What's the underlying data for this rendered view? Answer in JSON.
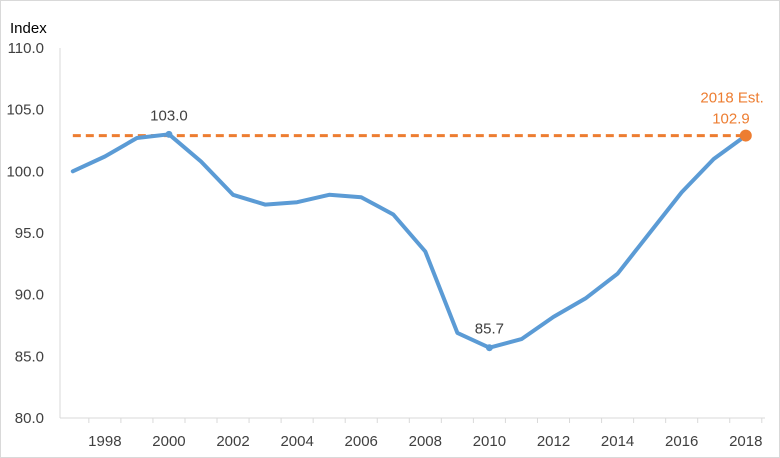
{
  "chart_data": {
    "type": "line",
    "title": "",
    "ylabel": "Index",
    "xlabel": "",
    "ylim": [
      80,
      110
    ],
    "yticks": [
      80,
      85,
      90,
      95,
      100,
      105,
      110
    ],
    "ytick_labels": [
      "80.0",
      "85.0",
      "90.0",
      "95.0",
      "100.0",
      "105.0",
      "110.0"
    ],
    "xlim": [
      1996.6,
      2018.6
    ],
    "xticks": [
      1998,
      2000,
      2002,
      2004,
      2006,
      2008,
      2010,
      2012,
      2014,
      2016,
      2018
    ],
    "xtick_labels": [
      "1998",
      "2000",
      "2002",
      "2004",
      "2006",
      "2008",
      "2010",
      "2012",
      "2014",
      "2016",
      "2018"
    ],
    "grid": false,
    "series": [
      {
        "name": "Index",
        "color": "#5b9bd5",
        "x": [
          1997,
          1998,
          1999,
          2000,
          2001,
          2002,
          2003,
          2004,
          2005,
          2006,
          2007,
          2008,
          2009,
          2010,
          2011,
          2012,
          2013,
          2014,
          2015,
          2016,
          2017,
          2018
        ],
        "values": [
          100.0,
          101.2,
          102.7,
          103.0,
          100.8,
          98.1,
          97.3,
          97.5,
          98.1,
          97.9,
          96.5,
          93.5,
          86.9,
          85.7,
          86.4,
          88.2,
          89.7,
          91.7,
          95.0,
          98.3,
          101.0,
          102.9
        ]
      }
    ],
    "reference_line": {
      "name": "2018 Est.",
      "value": 102.9,
      "color": "#ed7d31",
      "style": "dashed"
    },
    "annotations": [
      {
        "x": 2000,
        "y": 103.0,
        "text": "103.0",
        "color": "#404040"
      },
      {
        "x": 2010,
        "y": 85.7,
        "text": "85.7",
        "color": "#404040"
      }
    ],
    "estimate_point": {
      "x": 2018,
      "y": 102.9,
      "label": "2018 Est.",
      "value_text": "102.9",
      "color": "#ed7d31"
    }
  }
}
